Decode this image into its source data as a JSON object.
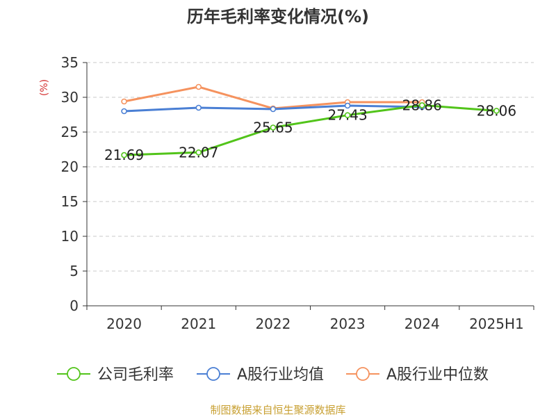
{
  "chart_data": {
    "type": "line",
    "title": "历年毛利率变化情况(%)",
    "ylabel": "(%)",
    "xlabel": "",
    "categories": [
      "2020",
      "2021",
      "2022",
      "2023",
      "2024",
      "2025H1"
    ],
    "ylim": [
      0,
      35
    ],
    "yticks": [
      0,
      5,
      10,
      15,
      20,
      25,
      30,
      35
    ],
    "grid": true,
    "legend_position": "bottom",
    "series": [
      {
        "name": "公司毛利率",
        "color": "#52c41a",
        "values": [
          21.69,
          22.07,
          25.65,
          27.43,
          28.86,
          28.06
        ],
        "labels": [
          "21.69",
          "22.07",
          "25.65",
          "27.43",
          "28.86",
          "28.06"
        ]
      },
      {
        "name": "A股行业均值",
        "color": "#4a7fd4",
        "values": [
          28.0,
          28.5,
          28.3,
          28.8,
          28.6,
          null
        ]
      },
      {
        "name": "A股行业中位数",
        "color": "#f5925e",
        "values": [
          29.4,
          31.5,
          28.4,
          29.3,
          29.3,
          null
        ]
      }
    ]
  },
  "footer": {
    "source": "制图数据来自恒生聚源数据库",
    "color": "#c8a032"
  }
}
